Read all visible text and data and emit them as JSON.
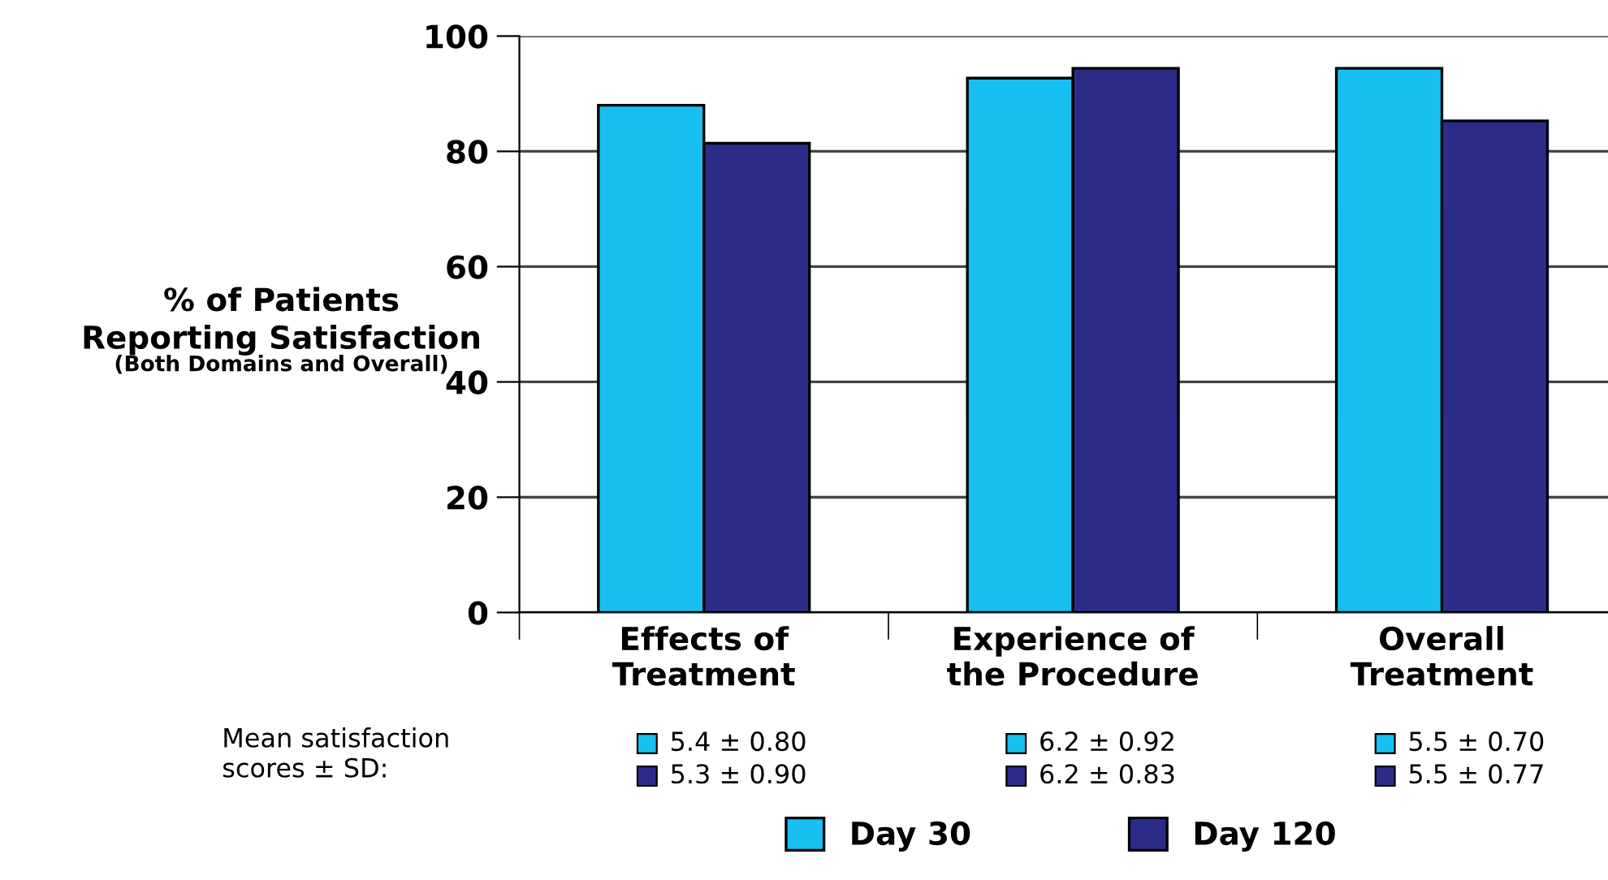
{
  "chart_data": {
    "type": "bar",
    "ylabel": "% of Patients\nReporting Satisfaction",
    "subtitle": "(Both Domains and Overall)",
    "categories": [
      "Effects of\nTreatment",
      "Experience of\nthe Procedure",
      "Overall\nTreatment"
    ],
    "series": [
      {
        "name": "Day 30",
        "color": "#17c0f0",
        "values": [
          88,
          92.7,
          94.4
        ]
      },
      {
        "name": "Day 120",
        "color": "#2b2c88",
        "values": [
          81.4,
          94.4,
          85.3
        ]
      }
    ],
    "ylim": [
      0,
      100
    ],
    "yticks": [
      0,
      20,
      40,
      60,
      80,
      100
    ],
    "grid": "y",
    "legend": "bottom",
    "annotations": [
      "Mean satisfaction\nscores ± SD:",
      "5.4 ± 0.80",
      "5.3 ± 0.90",
      "6.2 ± 0.92",
      "6.2 ± 0.83",
      "5.5 ± 0.70",
      "5.5 ± 0.77"
    ]
  }
}
